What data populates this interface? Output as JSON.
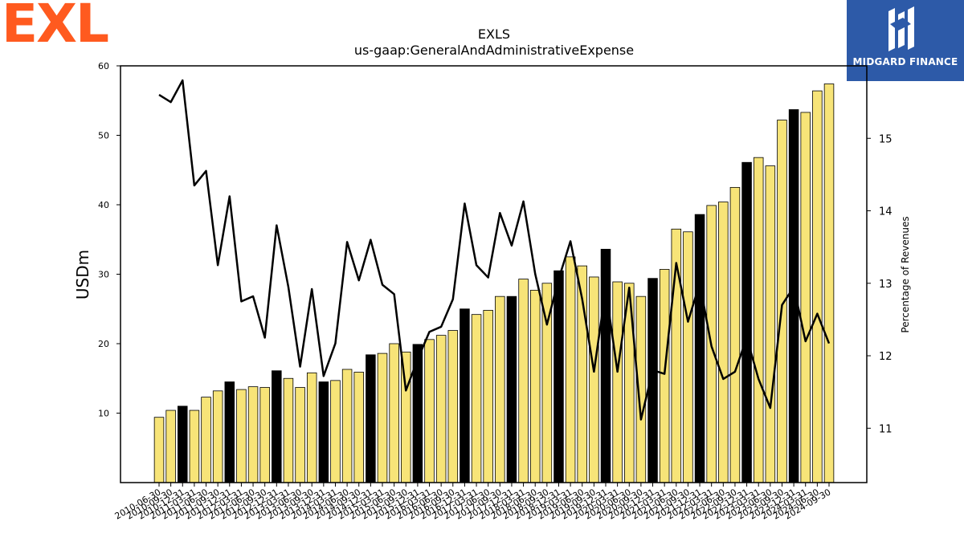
{
  "branding": {
    "left_logo_text": "EXL",
    "left_logo_color": "#ff5a1f",
    "right_logo_text": "MIDGARD FINANCE",
    "right_logo_bg": "#2d5aa8"
  },
  "chart_data": {
    "type": "bar",
    "title": "EXLS",
    "subtitle": "us-gaap:GeneralAndAdministrativeExpense",
    "ylabel": "USDm",
    "y2label": "Percentage of Revenues",
    "ylim": [
      0,
      60
    ],
    "y2lim": [
      10.25,
      16.0
    ],
    "yticks": [
      10,
      20,
      30,
      40,
      50,
      60
    ],
    "y2ticks": [
      11,
      12,
      13,
      14,
      15
    ],
    "colors": {
      "bar": "#f7e478",
      "bar_q4": "#000000",
      "line": "#000000"
    },
    "categories": [
      "2010-06-30",
      "2010-09-30",
      "2010-12-31",
      "2011-03-31",
      "2011-06-30",
      "2011-09-30",
      "2011-12-31",
      "2012-03-31",
      "2012-06-30",
      "2012-09-30",
      "2012-12-31",
      "2013-03-31",
      "2013-06-30",
      "2013-09-30",
      "2013-12-31",
      "2014-03-31",
      "2014-06-30",
      "2014-09-30",
      "2014-12-31",
      "2015-03-31",
      "2015-06-30",
      "2015-09-30",
      "2015-12-31",
      "2016-03-31",
      "2016-06-30",
      "2016-09-30",
      "2016-12-31",
      "2017-03-31",
      "2017-06-30",
      "2017-09-30",
      "2017-12-31",
      "2018-03-31",
      "2018-06-30",
      "2018-09-30",
      "2018-12-31",
      "2019-03-31",
      "2019-06-30",
      "2019-09-30",
      "2019-12-31",
      "2020-03-31",
      "2020-06-30",
      "2020-09-30",
      "2020-12-31",
      "2021-03-31",
      "2021-06-30",
      "2021-09-30",
      "2021-12-31",
      "2022-03-31",
      "2022-06-30",
      "2022-09-30",
      "2022-12-31",
      "2023-03-31",
      "2023-06-30",
      "2023-09-30",
      "2023-12-31",
      "2024-03-31",
      "2024-06-30",
      "2024-09-30"
    ],
    "series": [
      {
        "values": [
          9.4,
          10.4,
          11.0,
          10.4,
          12.3,
          13.2,
          14.5,
          13.4,
          13.8,
          13.7,
          16.1,
          15.0,
          13.7,
          15.8,
          14.5,
          14.7,
          16.3,
          15.9,
          18.4,
          18.6,
          20.0,
          18.8,
          19.9,
          20.6,
          21.2,
          21.9,
          25.0,
          24.2,
          24.8,
          26.8,
          26.8,
          29.3,
          27.7,
          28.7,
          30.5,
          32.5,
          31.2,
          29.6,
          33.6,
          28.9,
          28.7,
          26.8,
          29.4,
          30.7,
          36.5,
          36.1,
          38.6,
          39.9,
          40.4,
          42.5,
          46.1,
          46.8,
          45.6,
          52.2,
          53.7,
          53.3,
          56.4,
          57.4
        ]
      },
      {
        "values": [
          15.6,
          15.5,
          15.8,
          14.35,
          14.55,
          13.25,
          14.2,
          12.75,
          12.82,
          12.25,
          13.8,
          12.95,
          11.85,
          12.92,
          11.72,
          12.17,
          13.57,
          13.04,
          13.6,
          12.98,
          12.85,
          11.52,
          11.95,
          12.33,
          12.4,
          12.78,
          14.1,
          13.25,
          13.08,
          13.97,
          13.52,
          14.13,
          13.13,
          12.43,
          13.06,
          13.58,
          12.78,
          11.78,
          12.92,
          11.78,
          12.94,
          11.12,
          11.8,
          11.75,
          13.28,
          12.47,
          13.0,
          12.13,
          11.68,
          11.78,
          12.25,
          11.68,
          11.28,
          12.7,
          12.95,
          12.2,
          12.58,
          12.17
        ]
      }
    ]
  }
}
